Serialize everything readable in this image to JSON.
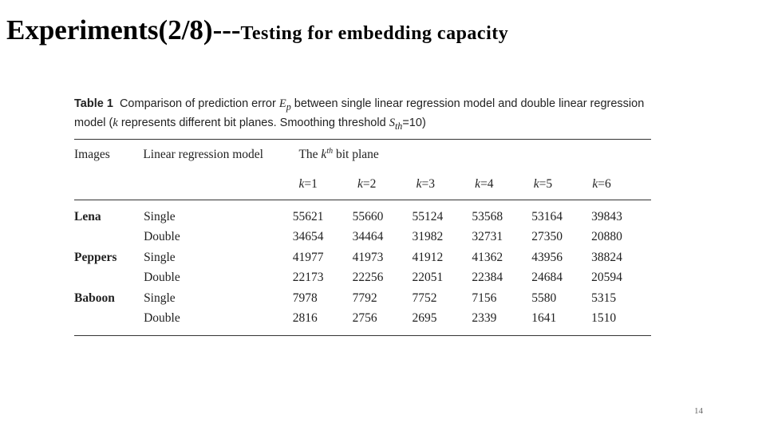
{
  "slide": {
    "title_main": "Experiments(2/8)---",
    "title_sub": "Testing for embedding capacity",
    "page_number": "14"
  },
  "table": {
    "caption": {
      "label": "Table 1",
      "text_part1": "Comparison of prediction error",
      "symbol": "E",
      "symbol_sub": "p",
      "text_part2": "between single linear regression model and double linear regression model (",
      "k_var": "k",
      "text_part3": "represents different bit planes. Smoothing threshold",
      "threshold_symbol": "S",
      "threshold_sub": "th",
      "threshold_value": "=10)"
    },
    "headers": {
      "images": "Images",
      "model": "Linear regression model",
      "bitplane_prefix": "The",
      "bitplane_k": "k",
      "bitplane_sup": "th",
      "bitplane_suffix": "bit plane"
    },
    "k_columns": [
      "=1",
      "=2",
      "=3",
      "=4",
      "=5",
      "=6"
    ],
    "k_symbol": "k",
    "rows": [
      {
        "image": "Lena",
        "model": "Single",
        "values": [
          "55621",
          "55660",
          "55124",
          "53568",
          "53164",
          "39843"
        ]
      },
      {
        "image": "",
        "model": "Double",
        "values": [
          "34654",
          "34464",
          "31982",
          "32731",
          "27350",
          "20880"
        ]
      },
      {
        "image": "Peppers",
        "model": "Single",
        "values": [
          "41977",
          "41973",
          "41912",
          "41362",
          "43956",
          "38824"
        ]
      },
      {
        "image": "",
        "model": "Double",
        "values": [
          "22173",
          "22256",
          "22051",
          "22384",
          "24684",
          "20594"
        ]
      },
      {
        "image": "Baboon",
        "model": "Single",
        "values": [
          "7978",
          "7792",
          "7752",
          "7156",
          "5580",
          "5315"
        ]
      },
      {
        "image": "",
        "model": "Double",
        "values": [
          "2816",
          "2756",
          "2695",
          "2339",
          "1641",
          "1510"
        ]
      }
    ]
  }
}
